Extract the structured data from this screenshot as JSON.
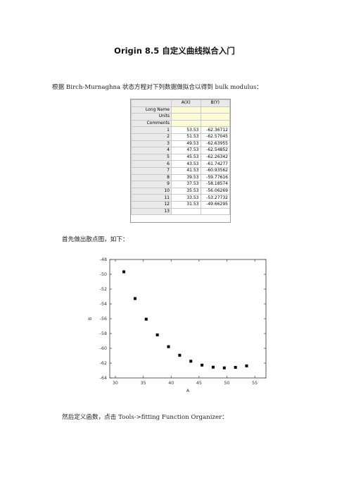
{
  "title": "Origin 8.5  自定义曲线拟合入门",
  "paragraph1": "根据 Birch-Murnaghna 状态方程对下列数据做拟合以得到 bulk modulus：",
  "paragraph2": "首先做出散点图，如下：",
  "paragraph3": "然后定义函数，点击 Tools->fitting Function Organizer：",
  "worksheet": {
    "columns": [
      "A(X)",
      "B(Y)"
    ],
    "meta_rows": [
      "Long Name",
      "Units",
      "Comments"
    ],
    "rows": [
      {
        "n": "1",
        "a": "53.53",
        "b": "-62.36712"
      },
      {
        "n": "2",
        "a": "51.53",
        "b": "-62.57045"
      },
      {
        "n": "3",
        "a": "49.53",
        "b": "-62.63955"
      },
      {
        "n": "4",
        "a": "47.53",
        "b": "-62.54852"
      },
      {
        "n": "5",
        "a": "45.53",
        "b": "-62.26342"
      },
      {
        "n": "6",
        "a": "43.53",
        "b": "-61.74277"
      },
      {
        "n": "7",
        "a": "41.53",
        "b": "-60.93562"
      },
      {
        "n": "8",
        "a": "39.53",
        "b": "-59.77616"
      },
      {
        "n": "9",
        "a": "37.53",
        "b": "-58.18574"
      },
      {
        "n": "10",
        "a": "35.53",
        "b": "-56.06269"
      },
      {
        "n": "11",
        "a": "33.53",
        "b": "-53.27732"
      },
      {
        "n": "12",
        "a": "31.53",
        "b": "-49.66295"
      },
      {
        "n": "13",
        "a": "",
        "b": ""
      }
    ]
  },
  "chart_data": {
    "type": "scatter",
    "xlabel": "A",
    "ylabel": "B",
    "xlim": [
      29,
      57
    ],
    "ylim": [
      -64,
      -48
    ],
    "xticks": [
      30,
      35,
      40,
      45,
      50,
      55
    ],
    "yticks": [
      -48,
      -50,
      -52,
      -54,
      -56,
      -58,
      -60,
      -62,
      -64
    ],
    "grid": false,
    "x": [
      53.53,
      51.53,
      49.53,
      47.53,
      45.53,
      43.53,
      41.53,
      39.53,
      37.53,
      35.53,
      33.53,
      31.53
    ],
    "y": [
      -62.36712,
      -62.57045,
      -62.63955,
      -62.54852,
      -62.26342,
      -61.74277,
      -60.93562,
      -59.77616,
      -58.18574,
      -56.06269,
      -53.27732,
      -49.66295
    ]
  }
}
